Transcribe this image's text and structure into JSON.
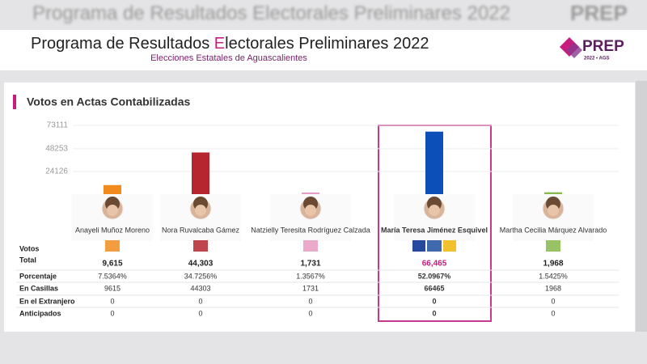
{
  "header": {
    "title_parts": [
      "Programa de Resultados ",
      "E",
      "lectorales Preliminares 2022"
    ],
    "subtitle": "Elecciones Estatales de Aguascalientes",
    "logo": "PREP",
    "logo_sub": "2022 • AGS"
  },
  "section_title": "Votos en Actas Contabilizadas",
  "chart_data": {
    "type": "bar",
    "categories": [
      "Anayeli Muñoz Moreno",
      "Nora Ruvalcaba Gámez",
      "Natzielly Teresita Rodríguez Calzada",
      "María Teresa Jiménez Esquivel",
      "Martha Cecilia Márquez Alvarado"
    ],
    "values": [
      9615,
      44303,
      1731,
      66465,
      1968
    ],
    "value_labels": [
      "9,615",
      "44,303",
      "1,731",
      "66,465",
      "1,968"
    ],
    "colors": [
      "#f28b1e",
      "#b5262f",
      "#e79bc2",
      "#0d4fb8",
      "#86b94a"
    ],
    "ylim": [
      0,
      73111
    ],
    "yticks": [
      24126,
      48253,
      73111
    ],
    "grid": true
  },
  "table": {
    "total_label": [
      "Votos",
      "Total"
    ],
    "rows": [
      {
        "label": "Porcentaje",
        "values": [
          "7.5364%",
          "34.7256%",
          "1.3567%",
          "52.0967%",
          "1.5425%"
        ]
      },
      {
        "label": "En Casillas",
        "values": [
          9615,
          44303,
          1731,
          66465,
          1968
        ]
      },
      {
        "label": "En el Extranjero",
        "values": [
          0,
          0,
          0,
          0,
          0
        ]
      },
      {
        "label": "Anticipados",
        "values": [
          0,
          0,
          0,
          0,
          0
        ]
      }
    ]
  }
}
